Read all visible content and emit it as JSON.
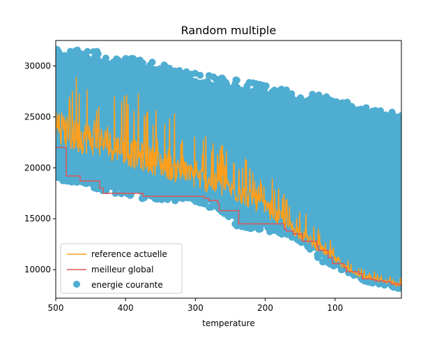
{
  "chart_data": {
    "type": "line",
    "title": "Random multiple",
    "xlabel": "temperature",
    "ylabel": "",
    "xlim": [
      500,
      5
    ],
    "ylim": [
      7200,
      32500
    ],
    "x_reversed": true,
    "x_ticks": [
      500,
      400,
      300,
      200,
      100
    ],
    "x_tick_labels": [
      "500",
      "400",
      "300",
      "200",
      "100"
    ],
    "y_ticks": [
      10000,
      15000,
      20000,
      25000,
      30000
    ],
    "y_tick_labels": [
      "10000",
      "15000",
      "20000",
      "25000",
      "30000"
    ],
    "grid": false,
    "legend_position": "lower-left",
    "series": [
      {
        "name": "reference actuelle",
        "kind": "line",
        "color": "#ff9f1c",
        "x": [
          500,
          480,
          460,
          440,
          420,
          400,
          380,
          360,
          340,
          320,
          300,
          280,
          260,
          240,
          220,
          200,
          180,
          160,
          140,
          120,
          100,
          80,
          60,
          40,
          20,
          5
        ],
        "y": [
          24000,
          23000,
          22800,
          22500,
          22000,
          21500,
          21000,
          20500,
          20000,
          19500,
          19000,
          18500,
          18000,
          17500,
          16800,
          16000,
          15000,
          14000,
          13000,
          12000,
          11000,
          10000,
          9300,
          9000,
          8700,
          8500
        ]
      },
      {
        "name": "meilleur global",
        "kind": "step",
        "color": "#e05555",
        "x": [
          500,
          485,
          465,
          445,
          437,
          432,
          382,
          375,
          297,
          287,
          281,
          268,
          266,
          238,
          203,
          173,
          170,
          160,
          147,
          126,
          124,
          110,
          104,
          87,
          84,
          66,
          61,
          46,
          42,
          30,
          20,
          10,
          5
        ],
        "y": [
          22000,
          19200,
          18700,
          18700,
          18000,
          17500,
          17500,
          17200,
          17200,
          17000,
          16800,
          16500,
          15800,
          14500,
          14500,
          14000,
          13800,
          13500,
          12800,
          12300,
          11900,
          11200,
          10600,
          10200,
          9800,
          9600,
          9100,
          9000,
          8900,
          8800,
          8600,
          8500,
          8400
        ]
      },
      {
        "name": "energie courante",
        "kind": "scatter-band",
        "color": "#4fadd1",
        "x": [
          500,
          480,
          460,
          440,
          420,
          400,
          380,
          360,
          340,
          320,
          300,
          280,
          260,
          240,
          220,
          200,
          180,
          160,
          140,
          120,
          100,
          80,
          60,
          40,
          20,
          5
        ],
        "y_low": [
          19200,
          19000,
          18700,
          18300,
          17800,
          17700,
          17400,
          17300,
          17200,
          17100,
          17000,
          16500,
          16000,
          14500,
          14400,
          14200,
          13900,
          13500,
          12700,
          11200,
          10700,
          10000,
          9200,
          9000,
          8700,
          8400
        ],
        "y_high": [
          31000,
          31000,
          31000,
          30800,
          30500,
          30300,
          30000,
          29800,
          29500,
          29000,
          28700,
          28500,
          28200,
          28000,
          27800,
          27500,
          27200,
          27000,
          26800,
          26500,
          26200,
          25800,
          25400,
          25000,
          25000,
          25500
        ]
      }
    ]
  }
}
